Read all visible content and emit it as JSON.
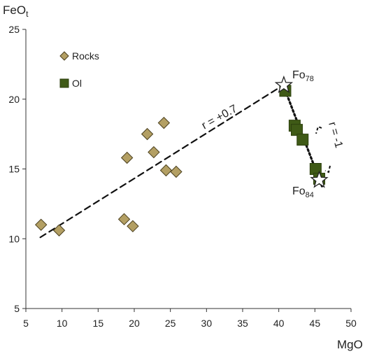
{
  "chart_data": {
    "type": "scatter",
    "xlabel": "MgO",
    "ylabel_main": "FeO",
    "ylabel_sub": "t",
    "xlim": [
      5,
      50
    ],
    "ylim": [
      5,
      25
    ],
    "xticks": [
      5,
      10,
      15,
      20,
      25,
      30,
      35,
      40,
      45,
      50
    ],
    "yticks": [
      5,
      10,
      15,
      20,
      25
    ],
    "grid": false,
    "legend_placement": "top-left",
    "colors": {
      "rocks": "#b39f63",
      "ol": "#3f5a16",
      "marker_edge": "#4a3f1e",
      "axis": "#333333"
    },
    "series": [
      {
        "name": "Rocks",
        "marker": "diamond",
        "points": [
          {
            "x": 7.1,
            "y": 11.0
          },
          {
            "x": 9.6,
            "y": 10.6
          },
          {
            "x": 18.6,
            "y": 11.4
          },
          {
            "x": 19.0,
            "y": 15.8
          },
          {
            "x": 19.8,
            "y": 10.9
          },
          {
            "x": 21.8,
            "y": 17.5
          },
          {
            "x": 22.7,
            "y": 16.2
          },
          {
            "x": 24.1,
            "y": 18.3
          },
          {
            "x": 24.4,
            "y": 14.9
          },
          {
            "x": 25.8,
            "y": 14.8
          }
        ]
      },
      {
        "name": "Ol",
        "marker": "square",
        "points": [
          {
            "x": 40.9,
            "y": 20.6
          },
          {
            "x": 42.2,
            "y": 18.1
          },
          {
            "x": 42.5,
            "y": 17.8
          },
          {
            "x": 43.3,
            "y": 17.1
          },
          {
            "x": 45.1,
            "y": 15.0
          },
          {
            "x": 45.6,
            "y": 14.3
          }
        ]
      }
    ],
    "trend_lines": [
      {
        "style": "dashed",
        "from": {
          "x": 7.0,
          "y": 10.1
        },
        "to": {
          "x": 40.3,
          "y": 20.9
        }
      },
      {
        "style": "dotted",
        "from": {
          "x": 40.7,
          "y": 20.9
        },
        "to": {
          "x": 46.1,
          "y": 13.6
        }
      }
    ],
    "end_members": [
      {
        "x": 40.7,
        "y": 21.0,
        "marker": "star",
        "label_main": "Fo",
        "label_sub": "78"
      },
      {
        "x": 45.6,
        "y": 14.2,
        "marker": "star",
        "label_main": "Fo",
        "label_sub": "84"
      }
    ],
    "annotations": [
      {
        "text": "r = +0.7"
      },
      {
        "text": "r = -1"
      }
    ]
  }
}
